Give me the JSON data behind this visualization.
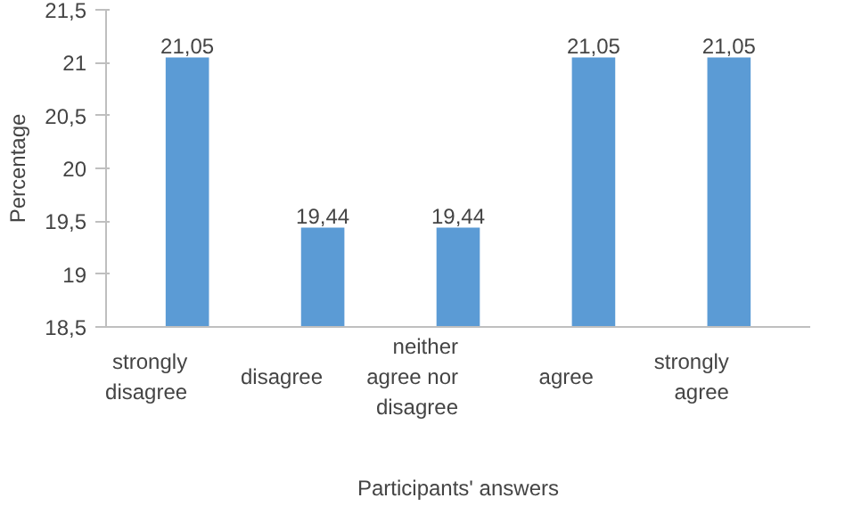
{
  "chart_data": {
    "type": "bar",
    "xlabel": "Participants' answers",
    "ylabel": "Percentage",
    "categories": [
      "strongly disagree",
      "disagree",
      "neither agree nor disagree",
      "agree",
      "strongly agree"
    ],
    "values": [
      21.05,
      19.44,
      19.44,
      21.05,
      21.05
    ],
    "value_labels": [
      "21,05",
      "19,44",
      "19,44",
      "21,05",
      "21,05"
    ],
    "color": "#5b9bd5",
    "ylim": [
      18.5,
      21.5
    ],
    "yticks": [
      {
        "value": 18.5,
        "label": "18,5"
      },
      19,
      {
        "value": 19.5,
        "label": "19,5"
      },
      20,
      {
        "value": 20.5,
        "label": "20,5"
      },
      21,
      {
        "value": 21.5,
        "label": "21,5"
      }
    ],
    "grid": false
  }
}
